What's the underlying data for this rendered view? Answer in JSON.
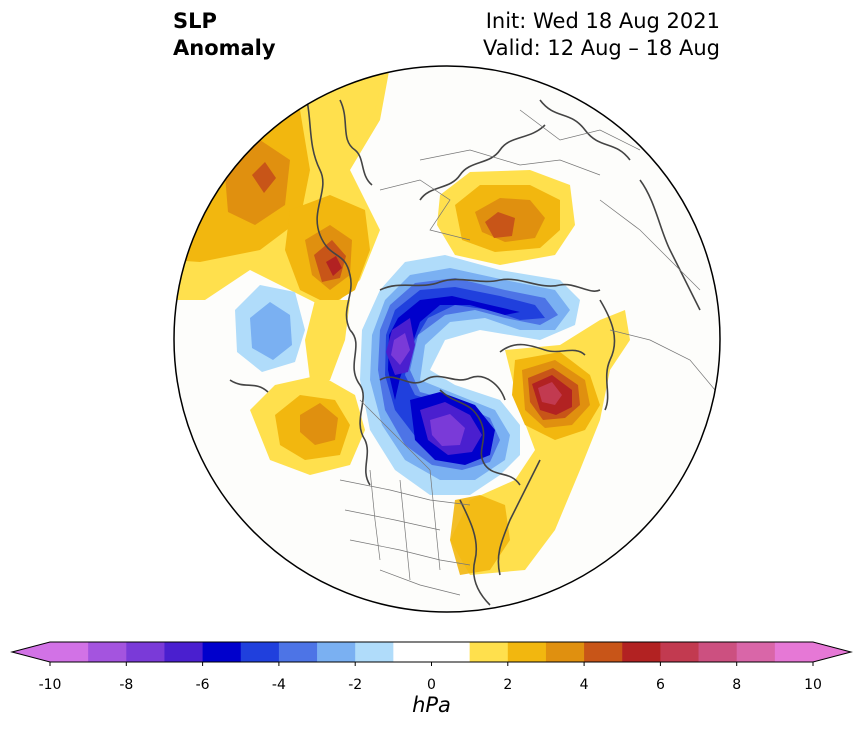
{
  "title": {
    "left_line1": "SLP",
    "left_line2": "Anomaly",
    "init": "Init: Wed 18 Aug 2021",
    "valid": "Valid: 12 Aug – 18 Aug"
  },
  "colorbar": {
    "unit": "hPa",
    "ticks": [
      "-10",
      "-8",
      "-6",
      "-4",
      "-2",
      "0",
      "2",
      "4",
      "6",
      "8",
      "10"
    ],
    "colors": [
      "#d272e6",
      "#a454df",
      "#7a3ad8",
      "#4a1fcf",
      "#0000cc",
      "#2040dd",
      "#4d74e6",
      "#7ab0f2",
      "#b0dcfa",
      "#ffffff",
      "#ffffff",
      "#ffe04d",
      "#f2b70f",
      "#e0900f",
      "#c85518",
      "#b22222",
      "#c23a50",
      "#cc5080",
      "#d966a8",
      "#e678d6"
    ],
    "extend_low_color": "#d272e6",
    "extend_high_color": "#e678d6"
  },
  "map": {
    "projection": "north polar stereographic",
    "anomaly_centers": [
      {
        "name": "negative-low-arctic-canada",
        "sign": "negative",
        "peak_hpa": -8
      },
      {
        "name": "negative-low-hudson-bay",
        "sign": "negative",
        "peak_hpa": -8
      },
      {
        "name": "negative-low-north-pacific",
        "sign": "negative",
        "peak_hpa": -3
      },
      {
        "name": "positive-high-siberia",
        "sign": "positive",
        "peak_hpa": 4
      },
      {
        "name": "positive-high-europe",
        "sign": "positive",
        "peak_hpa": 6
      },
      {
        "name": "positive-high-greenland",
        "sign": "positive",
        "peak_hpa": 6
      },
      {
        "name": "positive-high-west-siberia",
        "sign": "positive",
        "peak_hpa": 4
      },
      {
        "name": "positive-high-east-pacific",
        "sign": "positive",
        "peak_hpa": 3
      },
      {
        "name": "positive-high-us-east-coast",
        "sign": "positive",
        "peak_hpa": 2
      }
    ]
  }
}
